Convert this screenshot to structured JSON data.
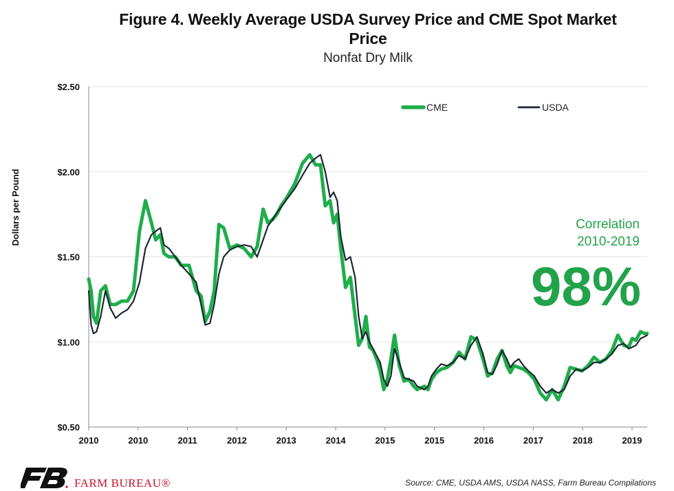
{
  "header": {
    "title_line1": "Figure 4. Weekly Average USDA Survey Price and CME Spot Market",
    "title_line2": "Price",
    "subtitle": "Nonfat Dry Milk"
  },
  "annotation": {
    "correlation_label_line1": "Correlation",
    "correlation_label_line2": "2010-2019",
    "correlation_value": "98%"
  },
  "footer": {
    "brand": "FARM BUREAU®",
    "source": "Source: CME, USDA AMS, USDA NASS, Farm Bureau Compilations"
  },
  "colors": {
    "cme": "#1fad4b",
    "usda": "#1c2533",
    "annotation": "#22a24a",
    "brand": "#c8102e"
  },
  "chart_data": {
    "type": "line",
    "ylabel": "Dollars per Pound",
    "ylim": [
      0.5,
      2.5
    ],
    "yticks": [
      "$0.50",
      "$1.00",
      "$1.50",
      "$2.00",
      "$2.50"
    ],
    "x_tick_labels": [
      "2010",
      "2010",
      "2011",
      "2012",
      "2013",
      "2014",
      "2015",
      "2015",
      "2016",
      "2017",
      "2018",
      "2019"
    ],
    "xlim": [
      2010.0,
      2019.35
    ],
    "legend": {
      "position": "top-right",
      "entries": [
        "CME",
        "USDA"
      ]
    },
    "grid": "horizontal",
    "series": [
      {
        "name": "CME",
        "x": [
          2010.0,
          2010.04,
          2010.08,
          2010.13,
          2010.2,
          2010.28,
          2010.36,
          2010.45,
          2010.55,
          2010.65,
          2010.75,
          2010.85,
          2010.95,
          2011.05,
          2011.12,
          2011.2,
          2011.26,
          2011.34,
          2011.45,
          2011.55,
          2011.68,
          2011.8,
          2011.88,
          2011.95,
          2012.03,
          2012.1,
          2012.18,
          2012.26,
          2012.36,
          2012.48,
          2012.6,
          2012.72,
          2012.82,
          2012.92,
          2013.0,
          2013.08,
          2013.15,
          2013.22,
          2013.32,
          2013.45,
          2013.58,
          2013.7,
          2013.8,
          2013.88,
          2013.96,
          2014.04,
          2014.1,
          2014.16,
          2014.22,
          2014.3,
          2014.38,
          2014.46,
          2014.52,
          2014.58,
          2014.64,
          2014.7,
          2014.76,
          2014.82,
          2014.88,
          2014.94,
          2015.0,
          2015.06,
          2015.12,
          2015.2,
          2015.28,
          2015.36,
          2015.44,
          2015.5,
          2015.56,
          2015.62,
          2015.68,
          2015.74,
          2015.82,
          2015.9,
          2016.0,
          2016.1,
          2016.2,
          2016.3,
          2016.4,
          2016.5,
          2016.6,
          2016.68,
          2016.76,
          2016.84,
          2016.92,
          2017.0,
          2017.06,
          2017.12,
          2017.2,
          2017.28,
          2017.36,
          2017.46,
          2017.56,
          2017.66,
          2017.76,
          2017.86,
          2017.96,
          2018.06,
          2018.16,
          2018.26,
          2018.36,
          2018.46,
          2018.56,
          2018.66,
          2018.76,
          2018.86,
          2018.96,
          2019.04,
          2019.1,
          2019.16,
          2019.24,
          2019.3,
          2019.35
        ],
        "values": [
          1.37,
          1.3,
          1.15,
          1.11,
          1.3,
          1.33,
          1.22,
          1.22,
          1.24,
          1.24,
          1.3,
          1.65,
          1.83,
          1.7,
          1.6,
          1.63,
          1.52,
          1.5,
          1.5,
          1.45,
          1.45,
          1.3,
          1.27,
          1.12,
          1.18,
          1.3,
          1.69,
          1.67,
          1.55,
          1.57,
          1.55,
          1.5,
          1.56,
          1.78,
          1.7,
          1.72,
          1.75,
          1.8,
          1.85,
          1.93,
          2.05,
          2.1,
          2.04,
          2.04,
          1.8,
          1.83,
          1.7,
          1.75,
          1.55,
          1.32,
          1.38,
          1.15,
          0.98,
          1.02,
          1.15,
          0.97,
          0.95,
          0.9,
          0.83,
          0.72,
          0.78,
          0.9,
          1.04,
          0.86,
          0.77,
          0.78,
          0.74,
          0.72,
          0.73,
          0.74,
          0.72,
          0.78,
          0.82,
          0.84,
          0.85,
          0.88,
          0.94,
          0.9,
          1.03,
          1.01,
          0.9,
          0.8,
          0.82,
          0.9,
          0.95,
          0.86,
          0.82,
          0.86,
          0.85,
          0.84,
          0.82,
          0.78,
          0.7,
          0.66,
          0.72,
          0.66,
          0.74,
          0.85,
          0.84,
          0.83,
          0.86,
          0.91,
          0.88,
          0.9,
          0.95,
          1.04,
          0.98,
          0.97,
          1.02,
          1.01,
          1.06,
          1.05,
          1.05
        ]
      },
      {
        "name": "USDA",
        "x": [
          2010.0,
          2010.04,
          2010.08,
          2010.13,
          2010.2,
          2010.28,
          2010.36,
          2010.45,
          2010.55,
          2010.65,
          2010.75,
          2010.85,
          2010.95,
          2011.05,
          2011.12,
          2011.2,
          2011.26,
          2011.34,
          2011.45,
          2011.55,
          2011.68,
          2011.8,
          2011.88,
          2011.95,
          2012.03,
          2012.1,
          2012.18,
          2012.26,
          2012.36,
          2012.48,
          2012.6,
          2012.72,
          2012.82,
          2012.92,
          2013.0,
          2013.08,
          2013.15,
          2013.22,
          2013.32,
          2013.45,
          2013.58,
          2013.7,
          2013.8,
          2013.88,
          2013.96,
          2014.04,
          2014.1,
          2014.16,
          2014.22,
          2014.3,
          2014.38,
          2014.46,
          2014.52,
          2014.58,
          2014.64,
          2014.7,
          2014.76,
          2014.82,
          2014.88,
          2014.94,
          2015.0,
          2015.06,
          2015.12,
          2015.2,
          2015.28,
          2015.36,
          2015.44,
          2015.5,
          2015.56,
          2015.62,
          2015.68,
          2015.74,
          2015.82,
          2015.9,
          2016.0,
          2016.1,
          2016.2,
          2016.3,
          2016.4,
          2016.5,
          2016.6,
          2016.68,
          2016.76,
          2016.84,
          2016.92,
          2017.0,
          2017.06,
          2017.12,
          2017.2,
          2017.28,
          2017.36,
          2017.46,
          2017.56,
          2017.66,
          2017.76,
          2017.86,
          2017.96,
          2018.06,
          2018.16,
          2018.26,
          2018.36,
          2018.46,
          2018.56,
          2018.66,
          2018.76,
          2018.86,
          2018.96,
          2019.04,
          2019.1,
          2019.16,
          2019.24,
          2019.3,
          2019.35
        ],
        "values": [
          1.3,
          1.1,
          1.05,
          1.06,
          1.15,
          1.3,
          1.2,
          1.14,
          1.17,
          1.19,
          1.24,
          1.35,
          1.55,
          1.63,
          1.65,
          1.67,
          1.57,
          1.55,
          1.5,
          1.45,
          1.4,
          1.35,
          1.22,
          1.1,
          1.11,
          1.22,
          1.4,
          1.5,
          1.54,
          1.56,
          1.57,
          1.56,
          1.5,
          1.6,
          1.68,
          1.72,
          1.76,
          1.79,
          1.84,
          1.9,
          1.98,
          2.05,
          2.08,
          2.1,
          2.0,
          1.85,
          1.88,
          1.83,
          1.62,
          1.48,
          1.5,
          1.38,
          1.15,
          1.02,
          1.06,
          1.0,
          0.96,
          0.92,
          0.88,
          0.78,
          0.74,
          0.8,
          0.96,
          0.88,
          0.79,
          0.78,
          0.77,
          0.74,
          0.73,
          0.72,
          0.74,
          0.8,
          0.84,
          0.87,
          0.86,
          0.88,
          0.92,
          0.9,
          0.98,
          1.03,
          0.93,
          0.82,
          0.81,
          0.87,
          0.95,
          0.9,
          0.85,
          0.88,
          0.9,
          0.86,
          0.83,
          0.8,
          0.74,
          0.7,
          0.72,
          0.7,
          0.72,
          0.8,
          0.84,
          0.83,
          0.85,
          0.88,
          0.88,
          0.9,
          0.93,
          0.98,
          0.99,
          0.96,
          0.97,
          0.98,
          1.02,
          1.03,
          1.04
        ]
      }
    ]
  }
}
